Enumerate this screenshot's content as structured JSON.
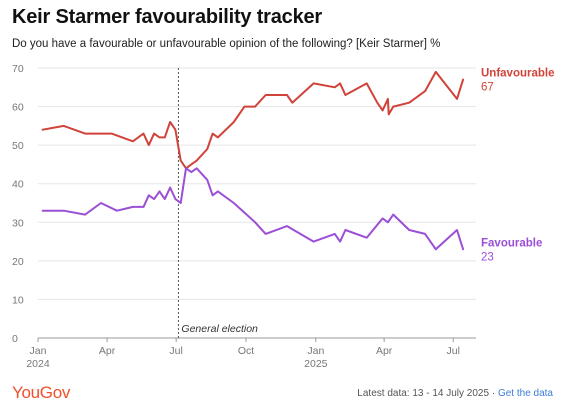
{
  "title": "Keir Starmer favourability tracker",
  "subtitle": "Do you have a favourable or unfavourable opinion of the following? [Keir Starmer] %",
  "brand": "YouGov",
  "footer": {
    "latest": "Latest data: 13 - 14 July 2025 · ",
    "link": "Get the data"
  },
  "colors": {
    "unfavourable": "#d1433a",
    "favourable": "#9b4fd6",
    "annotation_line": "#555555",
    "grid": "#e5e5e5"
  },
  "chart_data": {
    "type": "line",
    "title": "Keir Starmer favourability tracker",
    "ylim": [
      0,
      70
    ],
    "yticks": [
      0,
      10,
      20,
      30,
      40,
      50,
      60,
      70
    ],
    "xlim": [
      "2024-01-01",
      "2025-07-31"
    ],
    "xticks": [
      {
        "date": "2024-01-01",
        "label": "Jan",
        "sublabel": "2024"
      },
      {
        "date": "2024-04-01",
        "label": "Apr",
        "sublabel": ""
      },
      {
        "date": "2024-07-01",
        "label": "Jul",
        "sublabel": ""
      },
      {
        "date": "2024-10-01",
        "label": "Oct",
        "sublabel": ""
      },
      {
        "date": "2025-01-01",
        "label": "Jan",
        "sublabel": "2025"
      },
      {
        "date": "2025-04-01",
        "label": "Apr",
        "sublabel": ""
      },
      {
        "date": "2025-07-01",
        "label": "Jul",
        "sublabel": ""
      }
    ],
    "annotation": {
      "date": "2024-07-04",
      "label": "General election"
    },
    "grid": true,
    "series": [
      {
        "name": "Unfavourable",
        "key": "unfavourable",
        "last_value": "67",
        "points": [
          [
            "2024-01-07",
            54
          ],
          [
            "2024-02-04",
            55
          ],
          [
            "2024-03-03",
            53
          ],
          [
            "2024-04-07",
            53
          ],
          [
            "2024-05-05",
            51
          ],
          [
            "2024-05-19",
            53
          ],
          [
            "2024-05-26",
            50
          ],
          [
            "2024-06-02",
            53
          ],
          [
            "2024-06-09",
            52
          ],
          [
            "2024-06-16",
            52
          ],
          [
            "2024-06-23",
            56
          ],
          [
            "2024-06-30",
            54
          ],
          [
            "2024-07-07",
            46
          ],
          [
            "2024-07-14",
            44
          ],
          [
            "2024-07-21",
            45
          ],
          [
            "2024-07-28",
            46
          ],
          [
            "2024-08-11",
            49
          ],
          [
            "2024-08-18",
            53
          ],
          [
            "2024-08-25",
            52
          ],
          [
            "2024-09-15",
            56
          ],
          [
            "2024-09-29",
            60
          ],
          [
            "2024-10-13",
            60
          ],
          [
            "2024-10-27",
            63
          ],
          [
            "2024-11-24",
            63
          ],
          [
            "2024-12-01",
            61
          ],
          [
            "2024-12-29",
            66
          ],
          [
            "2025-01-26",
            65
          ],
          [
            "2025-02-02",
            66
          ],
          [
            "2025-02-09",
            63
          ],
          [
            "2025-03-09",
            66
          ],
          [
            "2025-03-23",
            61
          ],
          [
            "2025-03-30",
            59
          ],
          [
            "2025-04-06",
            62
          ],
          [
            "2025-04-07",
            58
          ],
          [
            "2025-04-13",
            60
          ],
          [
            "2025-05-04",
            61
          ],
          [
            "2025-05-25",
            64
          ],
          [
            "2025-06-08",
            69
          ],
          [
            "2025-07-06",
            62
          ],
          [
            "2025-07-14",
            67
          ]
        ]
      },
      {
        "name": "Favourable",
        "key": "favourable",
        "last_value": "23",
        "points": [
          [
            "2024-01-07",
            33
          ],
          [
            "2024-02-04",
            33
          ],
          [
            "2024-03-03",
            32
          ],
          [
            "2024-03-24",
            35
          ],
          [
            "2024-04-14",
            33
          ],
          [
            "2024-05-05",
            34
          ],
          [
            "2024-05-19",
            34
          ],
          [
            "2024-05-26",
            37
          ],
          [
            "2024-06-02",
            36
          ],
          [
            "2024-06-09",
            38
          ],
          [
            "2024-06-16",
            36
          ],
          [
            "2024-06-23",
            39
          ],
          [
            "2024-06-30",
            36
          ],
          [
            "2024-07-07",
            35
          ],
          [
            "2024-07-14",
            44
          ],
          [
            "2024-07-21",
            43
          ],
          [
            "2024-07-28",
            44
          ],
          [
            "2024-08-11",
            41
          ],
          [
            "2024-08-18",
            37
          ],
          [
            "2024-08-25",
            38
          ],
          [
            "2024-09-15",
            35
          ],
          [
            "2024-10-13",
            30
          ],
          [
            "2024-10-27",
            27
          ],
          [
            "2024-11-24",
            29
          ],
          [
            "2024-12-29",
            25
          ],
          [
            "2025-01-26",
            27
          ],
          [
            "2025-02-02",
            25
          ],
          [
            "2025-02-09",
            28
          ],
          [
            "2025-03-09",
            26
          ],
          [
            "2025-03-30",
            31
          ],
          [
            "2025-04-06",
            30
          ],
          [
            "2025-04-13",
            32
          ],
          [
            "2025-05-04",
            28
          ],
          [
            "2025-05-25",
            27
          ],
          [
            "2025-06-08",
            23
          ],
          [
            "2025-07-06",
            28
          ],
          [
            "2025-07-14",
            23
          ]
        ]
      }
    ]
  }
}
